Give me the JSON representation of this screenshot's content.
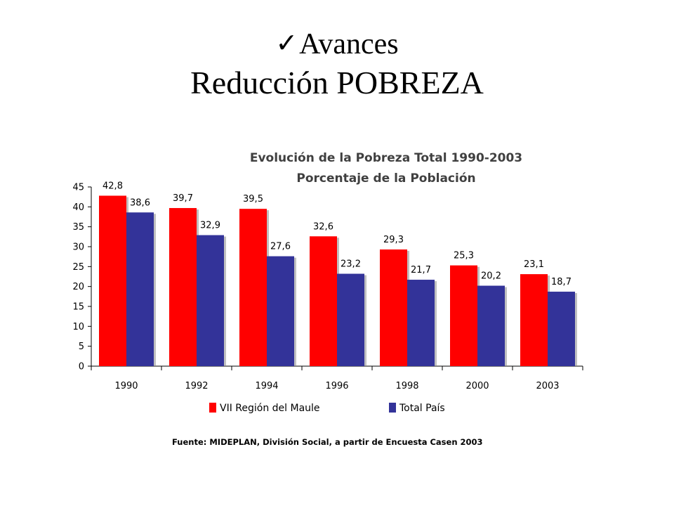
{
  "slide": {
    "check_glyph": "✓",
    "title_line1": "Avances",
    "title_line2": "Reducción POBREZA"
  },
  "chart_data": {
    "type": "bar",
    "title": "Evolución de la Pobreza Total 1990-2003",
    "subtitle": "Porcentaje de la Población",
    "categories": [
      "1990",
      "1992",
      "1994",
      "1996",
      "1998",
      "2000",
      "2003"
    ],
    "series": [
      {
        "name": "VII Región del Maule",
        "color": "#ff0000",
        "values": [
          42.8,
          39.7,
          39.5,
          32.6,
          29.3,
          25.3,
          23.1
        ],
        "labels": [
          "42,8",
          "39,7",
          "39,5",
          "32,6",
          "29,3",
          "25,3",
          "23,1"
        ]
      },
      {
        "name": "Total País",
        "color": "#333399",
        "values": [
          38.6,
          32.9,
          27.6,
          23.2,
          21.7,
          20.2,
          18.7
        ],
        "labels": [
          "38,6",
          "32,9",
          "27,6",
          "23,2",
          "21,7",
          "20,2",
          "18,7"
        ]
      }
    ],
    "ylim": [
      0,
      45
    ],
    "yticks": [
      0,
      5,
      10,
      15,
      20,
      25,
      30,
      35,
      40,
      45
    ],
    "grid": false,
    "legend_position": "bottom",
    "source": "Fuente: MIDEPLAN, División Social, a partir de Encuesta Casen 2003"
  }
}
